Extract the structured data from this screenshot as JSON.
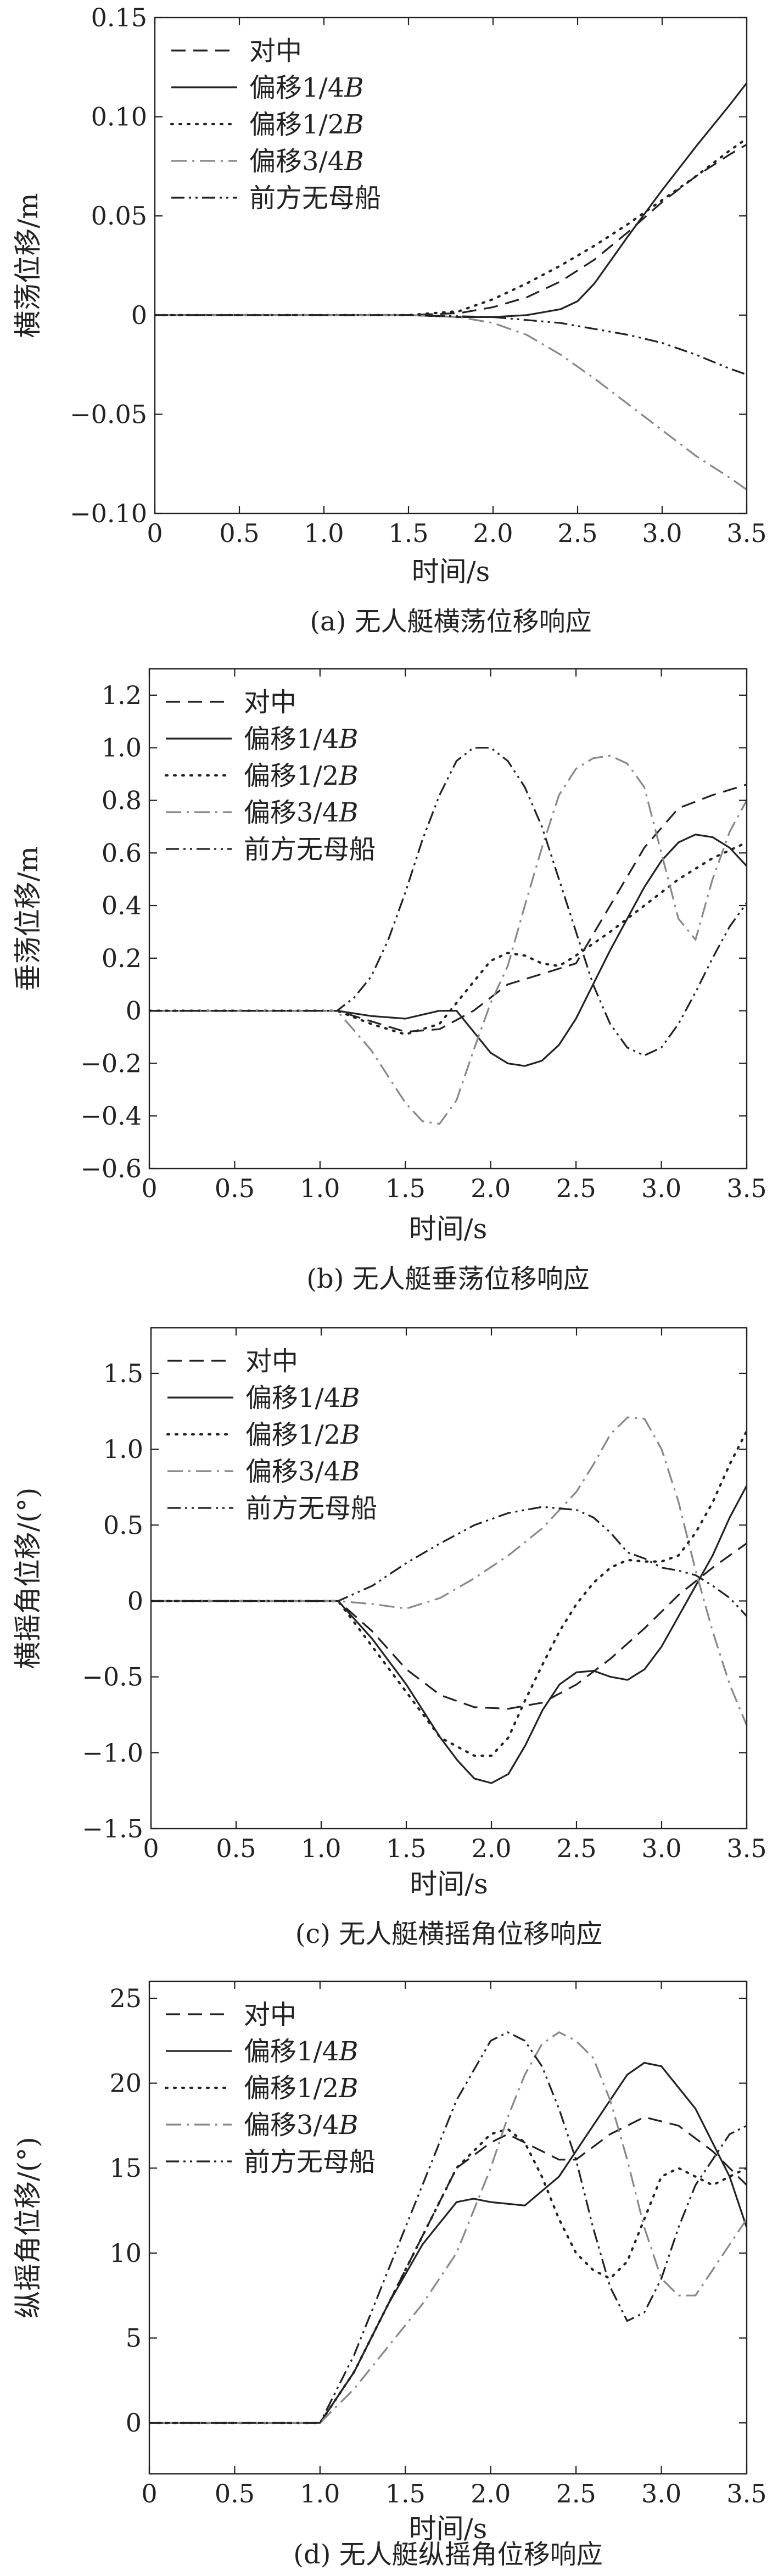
{
  "figure": {
    "legend_entries": [
      "对中",
      "偏移1/4",
      "偏移1/2",
      "偏移3/4",
      "前方无母船"
    ],
    "legend_suffix": "B"
  },
  "chart_data": [
    {
      "type": "line",
      "caption": "(a) 无人艇横荡位移响应",
      "xlabel": "时间/s",
      "ylabel": "横荡位移/m",
      "xlim": [
        0,
        3.5
      ],
      "ylim": [
        -0.1,
        0.15
      ],
      "xticks": [
        0,
        0.5,
        1.0,
        1.5,
        2.0,
        2.5,
        3.0,
        3.5
      ],
      "xtick_labels": [
        "0",
        "0.5",
        "1.0",
        "1.5",
        "2.0",
        "2.5",
        "3.0",
        "3.5"
      ],
      "yticks": [
        -0.1,
        -0.05,
        0,
        0.05,
        0.1,
        0.15
      ],
      "ytick_labels": [
        "−0.10",
        "−0.05",
        "0",
        "0.05",
        "0.10",
        "0.15"
      ],
      "legend_position": "top-left",
      "series": [
        {
          "name": "对中",
          "dash": "dash",
          "color": "#222222",
          "x": [
            0,
            1.5,
            1.8,
            2.0,
            2.2,
            2.4,
            2.6,
            2.8,
            3.0,
            3.2,
            3.4,
            3.5
          ],
          "y": [
            0,
            0,
            0.001,
            0.004,
            0.009,
            0.017,
            0.028,
            0.042,
            0.057,
            0.07,
            0.081,
            0.086
          ]
        },
        {
          "name": "偏移1/4B",
          "dash": "solid",
          "color": "#222222",
          "x": [
            0,
            1.5,
            1.8,
            2.0,
            2.2,
            2.4,
            2.5,
            2.6,
            2.7,
            2.8,
            3.0,
            3.2,
            3.4,
            3.5
          ],
          "y": [
            0,
            0,
            -0.001,
            -0.001,
            0,
            0.003,
            0.007,
            0.016,
            0.028,
            0.04,
            0.063,
            0.085,
            0.106,
            0.117
          ]
        },
        {
          "name": "偏移1/2B",
          "dash": "dot",
          "color": "#222222",
          "x": [
            0,
            1.5,
            1.8,
            2.0,
            2.2,
            2.4,
            2.6,
            2.8,
            3.0,
            3.2,
            3.4,
            3.5
          ],
          "y": [
            0,
            0,
            0.002,
            0.008,
            0.016,
            0.025,
            0.035,
            0.046,
            0.058,
            0.07,
            0.083,
            0.089
          ]
        },
        {
          "name": "偏移3/4B",
          "dash": "dashdot",
          "color": "#888888",
          "x": [
            0,
            1.5,
            1.8,
            2.0,
            2.2,
            2.4,
            2.6,
            2.8,
            3.0,
            3.2,
            3.4,
            3.5
          ],
          "y": [
            0,
            0,
            -0.001,
            -0.004,
            -0.01,
            -0.02,
            -0.032,
            -0.045,
            -0.058,
            -0.071,
            -0.082,
            -0.088
          ]
        },
        {
          "name": "前方无母船",
          "dash": "dashdotdot",
          "color": "#222222",
          "x": [
            0,
            1.5,
            2.0,
            2.4,
            2.8,
            3.0,
            3.2,
            3.4,
            3.5
          ],
          "y": [
            0,
            0,
            -0.001,
            -0.004,
            -0.01,
            -0.014,
            -0.02,
            -0.027,
            -0.03
          ]
        }
      ]
    },
    {
      "type": "line",
      "caption": "(b) 无人艇垂荡位移响应",
      "xlabel": "时间/s",
      "ylabel": "垂荡位移/m",
      "xlim": [
        0,
        3.5
      ],
      "ylim": [
        -0.6,
        1.3
      ],
      "xticks": [
        0,
        0.5,
        1.0,
        1.5,
        2.0,
        2.5,
        3.0,
        3.5
      ],
      "xtick_labels": [
        "0",
        "0.5",
        "1.0",
        "1.5",
        "2.0",
        "2.5",
        "3.0",
        "3.5"
      ],
      "yticks": [
        -0.6,
        -0.4,
        -0.2,
        0,
        0.2,
        0.4,
        0.6,
        0.8,
        1.0,
        1.2
      ],
      "ytick_labels": [
        "−0.6",
        "−0.4",
        "−0.2",
        "0",
        "0.2",
        "0.4",
        "0.6",
        "0.8",
        "1.0",
        "1.2"
      ],
      "legend_position": "top-left",
      "series": [
        {
          "name": "对中",
          "dash": "dash",
          "color": "#222222",
          "x": [
            0,
            1.1,
            1.3,
            1.5,
            1.7,
            1.9,
            2.1,
            2.3,
            2.5,
            2.7,
            2.9,
            3.1,
            3.3,
            3.5
          ],
          "y": [
            0,
            0,
            -0.04,
            -0.08,
            -0.07,
            0.0,
            0.1,
            0.14,
            0.18,
            0.4,
            0.62,
            0.77,
            0.82,
            0.86
          ]
        },
        {
          "name": "偏移1/4B",
          "dash": "solid",
          "color": "#222222",
          "x": [
            0,
            1.1,
            1.3,
            1.5,
            1.7,
            1.8,
            1.9,
            2.0,
            2.1,
            2.2,
            2.3,
            2.4,
            2.5,
            2.6,
            2.7,
            2.8,
            2.9,
            3.0,
            3.1,
            3.2,
            3.3,
            3.4,
            3.5
          ],
          "y": [
            0,
            0,
            -0.02,
            -0.03,
            0.0,
            0.0,
            -0.08,
            -0.16,
            -0.2,
            -0.21,
            -0.19,
            -0.13,
            -0.03,
            0.1,
            0.23,
            0.35,
            0.47,
            0.57,
            0.64,
            0.67,
            0.66,
            0.62,
            0.55
          ]
        },
        {
          "name": "偏移1/2B",
          "dash": "dot",
          "color": "#222222",
          "x": [
            0,
            1.1,
            1.3,
            1.5,
            1.7,
            1.9,
            2.0,
            2.1,
            2.2,
            2.3,
            2.4,
            2.5,
            2.7,
            2.9,
            3.1,
            3.3,
            3.5
          ],
          "y": [
            0,
            0,
            -0.05,
            -0.09,
            -0.05,
            0.11,
            0.19,
            0.22,
            0.21,
            0.18,
            0.17,
            0.21,
            0.3,
            0.4,
            0.5,
            0.58,
            0.64
          ]
        },
        {
          "name": "偏移3/4B",
          "dash": "dashdot",
          "color": "#888888",
          "x": [
            0,
            1.1,
            1.3,
            1.5,
            1.6,
            1.7,
            1.8,
            1.9,
            2.0,
            2.1,
            2.2,
            2.3,
            2.4,
            2.5,
            2.6,
            2.7,
            2.8,
            2.9,
            3.0,
            3.1,
            3.2,
            3.3,
            3.4,
            3.5
          ],
          "y": [
            0,
            0,
            -0.15,
            -0.35,
            -0.42,
            -0.43,
            -0.34,
            -0.15,
            0.03,
            0.17,
            0.4,
            0.62,
            0.82,
            0.92,
            0.96,
            0.97,
            0.94,
            0.85,
            0.6,
            0.35,
            0.27,
            0.5,
            0.68,
            0.8
          ]
        },
        {
          "name": "前方无母船",
          "dash": "dashdotdot",
          "color": "#222222",
          "x": [
            0,
            1.1,
            1.2,
            1.3,
            1.4,
            1.5,
            1.6,
            1.7,
            1.8,
            1.9,
            2.0,
            2.1,
            2.2,
            2.3,
            2.4,
            2.5,
            2.6,
            2.7,
            2.8,
            2.9,
            3.0,
            3.1,
            3.2,
            3.3,
            3.4,
            3.5
          ],
          "y": [
            0,
            0,
            0.05,
            0.13,
            0.27,
            0.45,
            0.65,
            0.82,
            0.95,
            1.0,
            1.0,
            0.95,
            0.85,
            0.7,
            0.5,
            0.3,
            0.1,
            -0.05,
            -0.14,
            -0.17,
            -0.14,
            -0.05,
            0.07,
            0.2,
            0.32,
            0.41
          ]
        }
      ]
    },
    {
      "type": "line",
      "caption": "(c) 无人艇横摇角位移响应",
      "xlabel": "时间/s",
      "ylabel": "横摇角位移/(°)",
      "xlim": [
        0,
        3.5
      ],
      "ylim": [
        -1.5,
        1.8
      ],
      "xticks": [
        0,
        0.5,
        1.0,
        1.5,
        2.0,
        2.5,
        3.0,
        3.5
      ],
      "xtick_labels": [
        "0",
        "0.5",
        "1.0",
        "1.5",
        "2.0",
        "2.5",
        "3.0",
        "3.5"
      ],
      "yticks": [
        -1.5,
        -1.0,
        -0.5,
        0,
        0.5,
        1.0,
        1.5
      ],
      "ytick_labels": [
        "−1.5",
        "−1.0",
        "−0.5",
        "0",
        "0.5",
        "1.0",
        "1.5"
      ],
      "legend_position": "top-left",
      "series": [
        {
          "name": "对中",
          "dash": "dash",
          "color": "#222222",
          "x": [
            0,
            1.1,
            1.3,
            1.5,
            1.7,
            1.9,
            2.1,
            2.3,
            2.5,
            2.7,
            2.9,
            3.1,
            3.3,
            3.5
          ],
          "y": [
            0,
            0,
            -0.2,
            -0.45,
            -0.62,
            -0.7,
            -0.71,
            -0.67,
            -0.55,
            -0.38,
            -0.18,
            0.04,
            0.22,
            0.38
          ]
        },
        {
          "name": "偏移1/4B",
          "dash": "solid",
          "color": "#222222",
          "x": [
            0,
            1.1,
            1.3,
            1.5,
            1.7,
            1.8,
            1.9,
            2.0,
            2.1,
            2.2,
            2.3,
            2.4,
            2.5,
            2.6,
            2.7,
            2.8,
            2.9,
            3.0,
            3.1,
            3.2,
            3.3,
            3.4,
            3.5
          ],
          "y": [
            0,
            0,
            -0.25,
            -0.55,
            -0.9,
            -1.05,
            -1.17,
            -1.2,
            -1.14,
            -0.95,
            -0.72,
            -0.55,
            -0.47,
            -0.46,
            -0.5,
            -0.52,
            -0.45,
            -0.3,
            -0.1,
            0.1,
            0.3,
            0.55,
            0.76
          ]
        },
        {
          "name": "偏移1/2B",
          "dash": "dot",
          "color": "#222222",
          "x": [
            0,
            1.1,
            1.3,
            1.5,
            1.7,
            1.9,
            2.0,
            2.1,
            2.2,
            2.3,
            2.4,
            2.5,
            2.6,
            2.7,
            2.8,
            2.9,
            3.0,
            3.1,
            3.2,
            3.3,
            3.4,
            3.5
          ],
          "y": [
            0,
            0,
            -0.3,
            -0.6,
            -0.9,
            -1.02,
            -1.02,
            -0.9,
            -0.65,
            -0.42,
            -0.2,
            -0.02,
            0.12,
            0.22,
            0.27,
            0.26,
            0.26,
            0.3,
            0.45,
            0.65,
            0.9,
            1.12
          ]
        },
        {
          "name": "偏移3/4B",
          "dash": "dashdot",
          "color": "#888888",
          "x": [
            0,
            1.1,
            1.3,
            1.5,
            1.7,
            1.9,
            2.1,
            2.3,
            2.5,
            2.6,
            2.7,
            2.8,
            2.9,
            3.0,
            3.1,
            3.2,
            3.3,
            3.4,
            3.5
          ],
          "y": [
            0,
            0,
            -0.02,
            -0.05,
            0.02,
            0.15,
            0.3,
            0.48,
            0.72,
            0.9,
            1.1,
            1.21,
            1.2,
            1.0,
            0.65,
            0.2,
            -0.2,
            -0.55,
            -0.82
          ]
        },
        {
          "name": "前方无母船",
          "dash": "dashdotdot",
          "color": "#222222",
          "x": [
            0,
            1.1,
            1.3,
            1.5,
            1.7,
            1.9,
            2.1,
            2.3,
            2.5,
            2.6,
            2.7,
            2.8,
            2.9,
            3.0,
            3.1,
            3.2,
            3.3,
            3.4,
            3.5
          ],
          "y": [
            0,
            0,
            0.1,
            0.25,
            0.38,
            0.5,
            0.58,
            0.62,
            0.6,
            0.55,
            0.45,
            0.32,
            0.28,
            0.22,
            0.2,
            0.17,
            0.1,
            0.02,
            -0.1
          ]
        }
      ]
    },
    {
      "type": "line",
      "caption": "(d) 无人艇纵摇角位移响应",
      "xlabel": "时间/s",
      "ylabel": "纵摇角位移/(°)",
      "xlim": [
        0,
        3.5
      ],
      "ylim": [
        -3,
        26
      ],
      "xticks": [
        0,
        0.5,
        1.0,
        1.5,
        2.0,
        2.5,
        3.0,
        3.5
      ],
      "xtick_labels": [
        "0",
        "0.5",
        "1.0",
        "1.5",
        "2.0",
        "2.5",
        "3.0",
        "3.5"
      ],
      "yticks": [
        0,
        5,
        10,
        15,
        20,
        25
      ],
      "ytick_labels": [
        "0",
        "5",
        "10",
        "15",
        "20",
        "25"
      ],
      "legend_position": "top-left",
      "series": [
        {
          "name": "对中",
          "dash": "dash",
          "color": "#222222",
          "x": [
            0,
            1.0,
            1.2,
            1.4,
            1.6,
            1.8,
            2.0,
            2.1,
            2.2,
            2.3,
            2.4,
            2.5,
            2.7,
            2.9,
            3.1,
            3.3,
            3.5
          ],
          "y": [
            0,
            0,
            3,
            7,
            11,
            15,
            16.5,
            17,
            16.5,
            16,
            15.5,
            15.5,
            17,
            18,
            17.5,
            16,
            14
          ]
        },
        {
          "name": "偏移1/4B",
          "dash": "solid",
          "color": "#222222",
          "x": [
            0,
            1.0,
            1.2,
            1.4,
            1.6,
            1.8,
            1.9,
            2.0,
            2.2,
            2.4,
            2.6,
            2.8,
            2.9,
            3.0,
            3.2,
            3.4,
            3.5
          ],
          "y": [
            0,
            0,
            3,
            7,
            10.5,
            13,
            13.2,
            13,
            12.8,
            14.5,
            17.5,
            20.5,
            21.2,
            21,
            18.5,
            14.5,
            11.5
          ]
        },
        {
          "name": "偏移1/2B",
          "dash": "dot",
          "color": "#222222",
          "x": [
            0,
            1.0,
            1.2,
            1.4,
            1.6,
            1.8,
            2.0,
            2.1,
            2.2,
            2.3,
            2.4,
            2.5,
            2.6,
            2.7,
            2.8,
            2.9,
            3.0,
            3.1,
            3.2,
            3.3,
            3.4,
            3.5
          ],
          "y": [
            0,
            0,
            3,
            7,
            11,
            15,
            17,
            17.3,
            16.5,
            14.5,
            12,
            10,
            9,
            8.5,
            9.5,
            12,
            14.5,
            15,
            14.5,
            14,
            14.5,
            15
          ]
        },
        {
          "name": "偏移3/4B",
          "dash": "dashdot",
          "color": "#888888",
          "x": [
            0,
            1.0,
            1.2,
            1.4,
            1.6,
            1.8,
            2.0,
            2.1,
            2.2,
            2.3,
            2.4,
            2.5,
            2.6,
            2.7,
            2.8,
            2.9,
            3.0,
            3.1,
            3.2,
            3.3,
            3.4,
            3.5
          ],
          "y": [
            0,
            0,
            2,
            4.5,
            7,
            10,
            15,
            18,
            20.5,
            22.3,
            23,
            22.5,
            21.5,
            19,
            15.5,
            11.5,
            8.5,
            7.5,
            7.5,
            9,
            10.5,
            12
          ]
        },
        {
          "name": "前方无母船",
          "dash": "dashdotdot",
          "color": "#222222",
          "x": [
            0,
            1.0,
            1.2,
            1.4,
            1.6,
            1.8,
            2.0,
            2.1,
            2.2,
            2.3,
            2.4,
            2.5,
            2.6,
            2.7,
            2.8,
            2.9,
            3.0,
            3.1,
            3.2,
            3.3,
            3.4,
            3.5
          ],
          "y": [
            0,
            0,
            4,
            9,
            14,
            19,
            22.5,
            23,
            22.5,
            21,
            18.5,
            15.5,
            11.5,
            8,
            6,
            6.5,
            8.5,
            11.5,
            14,
            15.5,
            17,
            17.5
          ]
        }
      ]
    }
  ]
}
